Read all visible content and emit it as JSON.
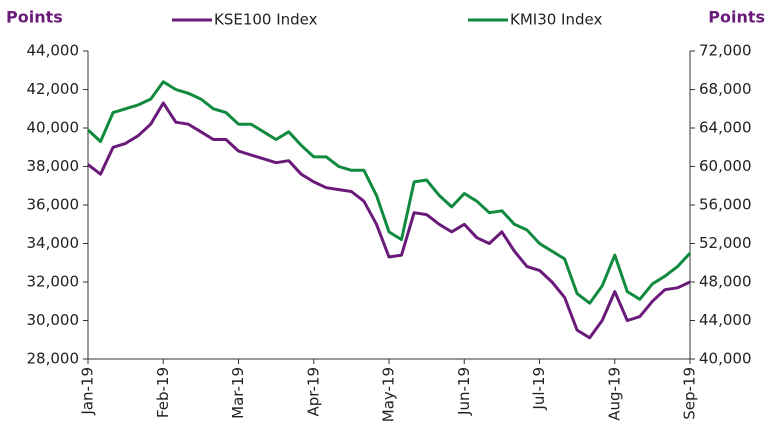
{
  "chart_data": {
    "type": "line",
    "y_label": "Points",
    "y2_label": "Points",
    "categories": [
      "Jan-19",
      null,
      null,
      null,
      null,
      null,
      "Feb-19",
      null,
      null,
      null,
      null,
      null,
      "Mar-19",
      null,
      null,
      null,
      null,
      null,
      "Apr-19",
      null,
      null,
      null,
      null,
      null,
      "May-19",
      null,
      null,
      null,
      null,
      null,
      "Jun-19",
      null,
      null,
      null,
      null,
      null,
      "Jul-19",
      null,
      null,
      null,
      null,
      null,
      "Aug-19",
      null,
      null,
      null,
      null,
      null,
      "Sep-19"
    ],
    "series": [
      {
        "name": "KSE100 Index",
        "color": "#6a1b7a",
        "axis": "y",
        "values": [
          38100,
          37600,
          39000,
          39200,
          39600,
          40200,
          41300,
          40300,
          40200,
          39800,
          39400,
          39400,
          38800,
          38600,
          38400,
          38200,
          38300,
          37600,
          37200,
          36900,
          36800,
          36700,
          36200,
          35000,
          33300,
          33400,
          35600,
          35500,
          35000,
          34600,
          35000,
          34300,
          34000,
          34600,
          33600,
          32800,
          32600,
          32000,
          31200,
          29500,
          29100,
          30000,
          31500,
          30000,
          30200,
          31000,
          31600,
          31700,
          32000
        ]
      },
      {
        "name": "KMI30 Index",
        "color": "#0f8a3e",
        "axis": "y2",
        "values": [
          63800,
          62600,
          65600,
          66000,
          66400,
          67000,
          68800,
          68000,
          67600,
          67000,
          66000,
          65600,
          64400,
          64400,
          63600,
          62800,
          63600,
          62200,
          61000,
          61000,
          60000,
          59600,
          59600,
          57000,
          53200,
          52400,
          58400,
          58600,
          57000,
          55800,
          57200,
          56400,
          55200,
          55400,
          54000,
          53400,
          52000,
          51200,
          50400,
          46800,
          45800,
          47600,
          50800,
          47000,
          46200,
          47800,
          48600,
          49600,
          51000
        ]
      }
    ],
    "ylim": [
      28000,
      44000
    ],
    "yticks": [
      {
        "value": 28000,
        "label": "28,000"
      },
      {
        "value": 30000,
        "label": "30,000"
      },
      {
        "value": 32000,
        "label": "32,000"
      },
      {
        "value": 34000,
        "label": "34,000"
      },
      {
        "value": 36000,
        "label": "36,000"
      },
      {
        "value": 38000,
        "label": "38,000"
      },
      {
        "value": 40000,
        "label": "40,000"
      },
      {
        "value": 42000,
        "label": "42,000"
      },
      {
        "value": 44000,
        "label": "44,000"
      }
    ],
    "y2lim": [
      40000,
      72000
    ],
    "y2ticks": [
      {
        "value": 40000,
        "label": "40,000"
      },
      {
        "value": 44000,
        "label": "44,000"
      },
      {
        "value": 48000,
        "label": "48,000"
      },
      {
        "value": 52000,
        "label": "52,000"
      },
      {
        "value": 56000,
        "label": "56,000"
      },
      {
        "value": 60000,
        "label": "60,000"
      },
      {
        "value": 64000,
        "label": "64,000"
      },
      {
        "value": 68000,
        "label": "68,000"
      },
      {
        "value": 72000,
        "label": "72,000"
      }
    ],
    "grid": false,
    "legend": "top"
  }
}
